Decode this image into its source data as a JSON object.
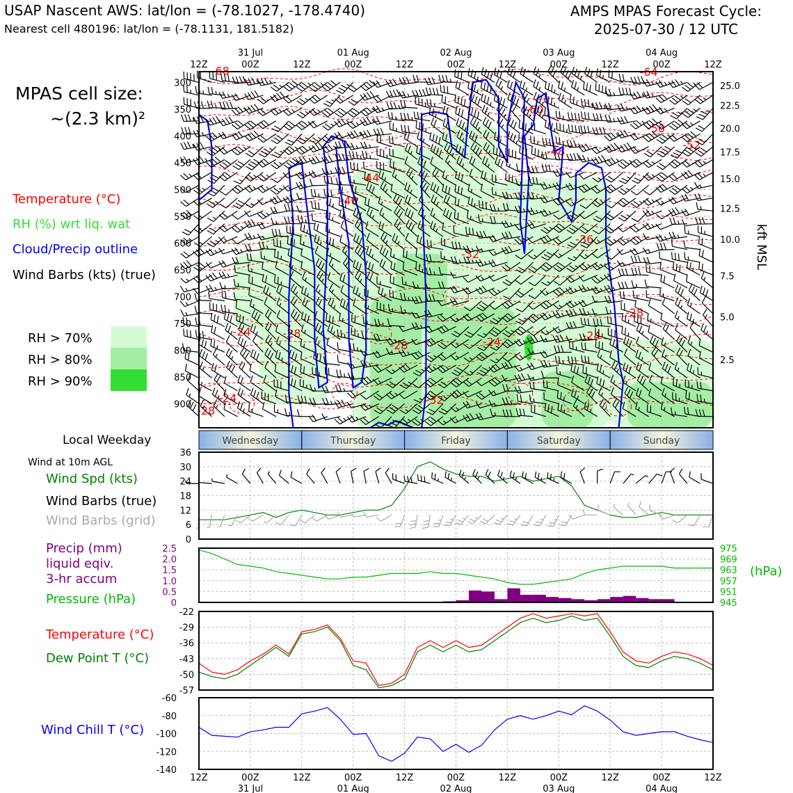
{
  "header": {
    "title": "USAP Nascent AWS: lat/lon = (-78.1027, -178.4740)",
    "subtitle": "Nearest cell 480196: lat/lon = (-78.1131, 181.5182)",
    "cycle_line1": "AMPS MPAS Forecast Cycle:",
    "cycle_line2": "2025-07-30 / 12 UTC"
  },
  "side_labels": {
    "cell_line1": "MPAS cell size:",
    "cell_line2": "~(2.3 km)²",
    "temperature": "Temperature (°C)",
    "rh": "RH (%) wrt liq. wat",
    "cloud": "Cloud/Precip outline",
    "barbs": "Wind Barbs (kts) (true)",
    "rh70": "RH > 70%",
    "rh80": "RH > 80%",
    "rh90": "RH > 90%",
    "weekday_title": "Local Weekday",
    "wind10m": "Wind at 10m AGL",
    "wind_spd": "Wind Spd (kts)",
    "barbs_true": "Wind Barbs (true)",
    "barbs_grid": "Wind Barbs (grid)",
    "precip1": "Precip (mm)",
    "precip2": "liquid eqiv.",
    "precip3": "3-hr accum",
    "pressure": "Pressure (hPa)",
    "pressure_unit": "(hPa)",
    "temp2": "Temperature (°C)",
    "dewpt": "Dew Point T (°C)",
    "windchill": "Wind Chill T (°C)",
    "kft": "kft MSL"
  },
  "colors": {
    "temperature": "#ff0000",
    "rh_label": "#33dd33",
    "rh70": "#d4fcd4",
    "rh80": "#a4eea4",
    "rh90": "#33dd33",
    "cloud": "#0000ee",
    "wind_speed": "#008000",
    "grid_barbs": "#aaaaaa",
    "precip": "#800080",
    "pressure": "#00bb00",
    "dewpoint": "#008000",
    "windchill": "#0000ff"
  },
  "time_axis": {
    "ticks": [
      "12Z",
      "00Z",
      "12Z",
      "00Z",
      "12Z",
      "00Z",
      "12Z",
      "00Z",
      "12Z",
      "00Z",
      "12Z"
    ],
    "dates": [
      "31 Jul",
      "01 Aug",
      "02 Aug",
      "03 Aug",
      "04 Aug"
    ]
  },
  "weekdays": [
    "Wednesday",
    "Thursday",
    "Friday",
    "Saturday",
    "Sunday"
  ],
  "chart_data": [
    {
      "type": "heatmap",
      "pressure_ticks": [
        300,
        350,
        400,
        450,
        500,
        550,
        600,
        650,
        700,
        750,
        800,
        850,
        900
      ],
      "kft_ticks": [
        "25.0",
        "22.5",
        "20.0",
        "17.5",
        "15.0",
        "12.5",
        "10.0",
        "7.5",
        "5.0",
        "2.5"
      ],
      "kft_pressures": [
        306,
        343,
        386,
        430,
        480,
        535,
        593,
        661,
        738,
        818
      ],
      "temperature_labels": [
        {
          "t": 3,
          "p": 286,
          "text": "-68"
        },
        {
          "t": 6,
          "p": 773,
          "text": "-24"
        },
        {
          "t": 13,
          "p": 776,
          "text": "-28"
        },
        {
          "t": 21,
          "p": 528,
          "text": "-40"
        },
        {
          "t": 24,
          "p": 485,
          "text": "-44"
        },
        {
          "t": 28,
          "p": 798,
          "text": "-28"
        },
        {
          "t": 38,
          "p": 628,
          "text": "-32"
        },
        {
          "t": 41,
          "p": 792,
          "text": "-24"
        },
        {
          "t": 47,
          "p": 358,
          "text": "-60"
        },
        {
          "t": 50,
          "p": 436,
          "text": "-48"
        },
        {
          "t": 54,
          "p": 600,
          "text": "-36"
        },
        {
          "t": 55,
          "p": 780,
          "text": "-24"
        },
        {
          "t": 61,
          "p": 737,
          "text": "-28"
        },
        {
          "t": 63,
          "p": 288,
          "text": "-64"
        },
        {
          "t": 64,
          "p": 393,
          "text": "-56"
        },
        {
          "t": 69,
          "p": 424,
          "text": "-52"
        },
        {
          "t": 4,
          "p": 897,
          "text": "-24"
        },
        {
          "t": 1,
          "p": 920,
          "text": "-28"
        },
        {
          "t": 33,
          "p": 900,
          "text": "-32"
        }
      ]
    },
    {
      "type": "line",
      "title": "Wind Spd (kts)",
      "x_hours": [
        0,
        3,
        6,
        9,
        12,
        15,
        18,
        21,
        24,
        27,
        30,
        33,
        36,
        39,
        42,
        45,
        48,
        51,
        54,
        57,
        60,
        63,
        66,
        69,
        72,
        75,
        78,
        81,
        84,
        87,
        90,
        93,
        96,
        99,
        102,
        105,
        108,
        111,
        114,
        117,
        120
      ],
      "y_ticks": [
        0,
        6,
        12,
        18,
        24,
        30,
        36
      ],
      "ylim": [
        0,
        36
      ],
      "speed": [
        8,
        8,
        8,
        9,
        10,
        11,
        9,
        11,
        12,
        11,
        10,
        10,
        11,
        12,
        12,
        14,
        21,
        30,
        32,
        29,
        27,
        26,
        26,
        24,
        25,
        26,
        24,
        25,
        26,
        22,
        14,
        12,
        10,
        9,
        9,
        10,
        11,
        10,
        10,
        10,
        10
      ],
      "barbs_true_dir": [
        270,
        275,
        280,
        300,
        320,
        330,
        320,
        310,
        300,
        320,
        330,
        340,
        350,
        350,
        345,
        330,
        290,
        280,
        285,
        295,
        300,
        310,
        315,
        315,
        310,
        305,
        300,
        300,
        295,
        300,
        340,
        0,
        20,
        40,
        50,
        40,
        20,
        340,
        320,
        300,
        290
      ],
      "barbs_grid_dir": [
        180,
        190,
        200,
        210,
        230,
        240,
        230,
        220,
        210,
        230,
        240,
        250,
        260,
        260,
        260,
        240,
        200,
        190,
        190,
        200,
        210,
        220,
        225,
        225,
        220,
        215,
        210,
        210,
        205,
        210,
        250,
        270,
        290,
        310,
        320,
        310,
        290,
        250,
        230,
        210,
        200
      ]
    },
    {
      "type": "bar",
      "title": "Precip (mm)",
      "x_hours": [
        24,
        27,
        30,
        33,
        36,
        39,
        42,
        45,
        48,
        51,
        54,
        57,
        60,
        63,
        66,
        69,
        72,
        75,
        78,
        81,
        84,
        87,
        90
      ],
      "precip": [
        0,
        0,
        0,
        0,
        0,
        0,
        0,
        0,
        0,
        0,
        0.05,
        0.2,
        0.1,
        0.4,
        0.3,
        0.1,
        0.25,
        0.4,
        0.35,
        0.25,
        0.12,
        0.08,
        0.05
      ],
      "precip_start_hour": 0,
      "precip_full": [
        0,
        0,
        0,
        0,
        0,
        0,
        0,
        0,
        0,
        0,
        0,
        0,
        0,
        0,
        0,
        0,
        0,
        0,
        0,
        0.05,
        0.1,
        0.55,
        0.5,
        0.15,
        0.65,
        0.35,
        0.35,
        0.25,
        0.2,
        0.15,
        0.1,
        0.15,
        0.25,
        0.3,
        0.2,
        0.15,
        0.15,
        0,
        0,
        0,
        0
      ],
      "precip_ticks": [
        "0",
        "0.5",
        "1.0",
        "1.5",
        "2.0",
        "2.5"
      ],
      "plim": [
        0,
        2.5
      ],
      "pressure": [
        974,
        972,
        969,
        966,
        965,
        964,
        962,
        961,
        960,
        959,
        958,
        958,
        959,
        959,
        960,
        961,
        961,
        961,
        962,
        961,
        961,
        960,
        959,
        958,
        956,
        955,
        955,
        956,
        957,
        958,
        961,
        963,
        964,
        965,
        965,
        965,
        965,
        964,
        964,
        964,
        964
      ],
      "pressure_ticks": [
        "975",
        "969",
        "963",
        "957",
        "951",
        "945"
      ],
      "presslim": [
        945,
        975
      ]
    },
    {
      "type": "line",
      "title": "Temperature (°C)",
      "y_ticks": [
        "-22",
        "-29",
        "-36",
        "-43",
        "-50",
        "-57"
      ],
      "ylim": [
        -57,
        -22
      ],
      "temperature": [
        -45,
        -49,
        -50,
        -48,
        -44,
        -41,
        -37,
        -41,
        -31,
        -30,
        -28,
        -34,
        -44,
        -45,
        -55,
        -54,
        -50,
        -38,
        -35,
        -38,
        -35,
        -38,
        -37,
        -33,
        -29,
        -25,
        -23,
        -25,
        -24,
        -23,
        -24,
        -23,
        -31,
        -40,
        -44,
        -45,
        -42,
        -40,
        -41,
        -43,
        -46
      ],
      "dewpoint": [
        -49,
        -51,
        -52,
        -50,
        -46,
        -42,
        -38,
        -42,
        -32,
        -31,
        -29,
        -35,
        -46,
        -48,
        -56,
        -55,
        -52,
        -40,
        -37,
        -40,
        -37,
        -40,
        -39,
        -35,
        -31,
        -27,
        -25,
        -27,
        -26,
        -24,
        -26,
        -25,
        -33,
        -42,
        -46,
        -47,
        -44,
        -42,
        -43,
        -45,
        -48
      ]
    },
    {
      "type": "line",
      "title": "Wind Chill T (°C)",
      "y_ticks": [
        "-60",
        "-80",
        "-100",
        "-120",
        "-140"
      ],
      "ylim": [
        -140,
        -60
      ],
      "windchill": [
        -93,
        -102,
        -103,
        -104,
        -98,
        -96,
        -93,
        -93,
        -78,
        -75,
        -71,
        -84,
        -101,
        -100,
        -125,
        -131,
        -122,
        -104,
        -106,
        -120,
        -112,
        -121,
        -113,
        -96,
        -84,
        -80,
        -84,
        -80,
        -75,
        -79,
        -69,
        -75,
        -85,
        -98,
        -102,
        -100,
        -98,
        -98,
        -103,
        -107,
        -110
      ]
    }
  ]
}
